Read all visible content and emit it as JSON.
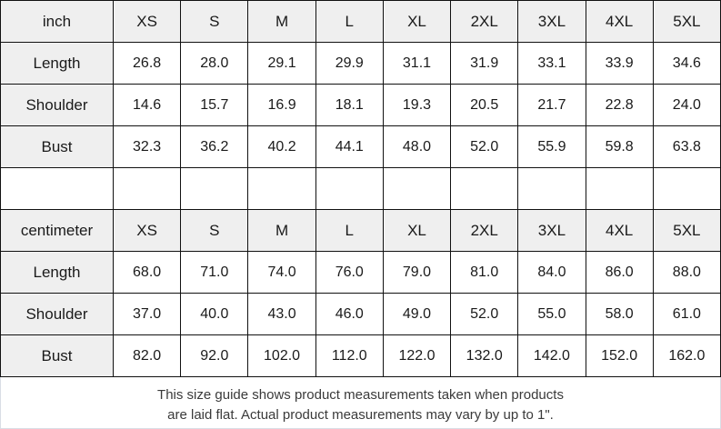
{
  "chart_data": [
    {
      "type": "table",
      "unit": "inch",
      "header": [
        "inch",
        "XS",
        "S",
        "M",
        "L",
        "XL",
        "2XL",
        "3XL",
        "4XL",
        "5XL"
      ],
      "rows": [
        {
          "label": "Length",
          "values": [
            "26.8",
            "28.0",
            "29.1",
            "29.9",
            "31.1",
            "31.9",
            "33.1",
            "33.9",
            "34.6"
          ]
        },
        {
          "label": "Shoulder",
          "values": [
            "14.6",
            "15.7",
            "16.9",
            "18.1",
            "19.3",
            "20.5",
            "21.7",
            "22.8",
            "24.0"
          ]
        },
        {
          "label": "Bust",
          "values": [
            "32.3",
            "36.2",
            "40.2",
            "44.1",
            "48.0",
            "52.0",
            "55.9",
            "59.8",
            "63.8"
          ]
        }
      ]
    },
    {
      "type": "table",
      "unit": "centimeter",
      "header": [
        "centimeter",
        "XS",
        "S",
        "M",
        "L",
        "XL",
        "2XL",
        "3XL",
        "4XL",
        "5XL"
      ],
      "rows": [
        {
          "label": "Length",
          "values": [
            "68.0",
            "71.0",
            "74.0",
            "76.0",
            "79.0",
            "81.0",
            "84.0",
            "86.0",
            "88.0"
          ]
        },
        {
          "label": "Shoulder",
          "values": [
            "37.0",
            "40.0",
            "43.0",
            "46.0",
            "49.0",
            "52.0",
            "55.0",
            "58.0",
            "61.0"
          ]
        },
        {
          "label": "Bust",
          "values": [
            "82.0",
            "92.0",
            "102.0",
            "112.0",
            "122.0",
            "132.0",
            "142.0",
            "152.0",
            "162.0"
          ]
        }
      ]
    }
  ],
  "footer": {
    "line1": "This size guide shows product measurements taken when products",
    "line2": "are laid flat. Actual product measurements may vary by up to 1\"."
  },
  "colors": {
    "header_bg": "#efefef",
    "table_border": "#111111",
    "light_border": "#d9dee5",
    "table_text": "#1a1a1a",
    "footer_text": "#3a3a3a"
  }
}
